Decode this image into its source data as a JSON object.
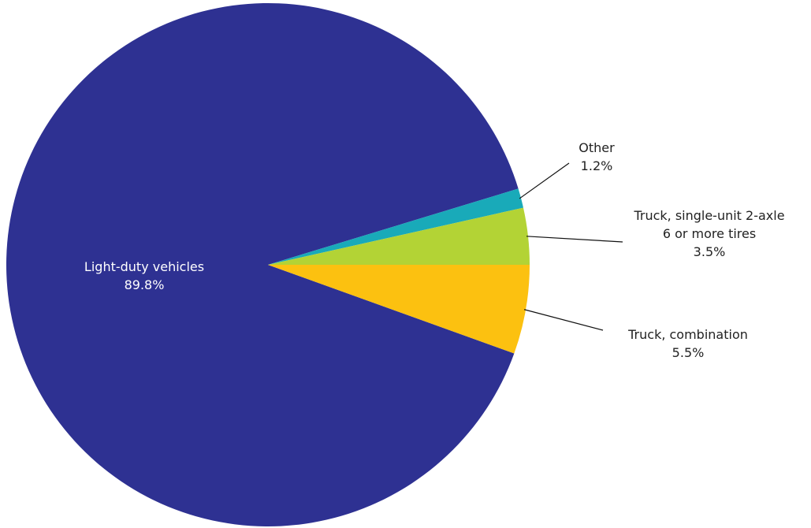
{
  "chart_data": {
    "type": "pie",
    "title": "",
    "slices": [
      {
        "label": [
          "Light-duty vehicles",
          "89.8%"
        ],
        "value": 89.8,
        "color": "#2e3192"
      },
      {
        "label": [
          "Other",
          "1.2%"
        ],
        "value": 1.2,
        "color": "#19aab9"
      },
      {
        "label": [
          "Truck, single-unit 2-axle",
          "6 or more tires",
          "3.5%"
        ],
        "value": 3.5,
        "color": "#b3d335"
      },
      {
        "label": [
          "Truck, combination",
          "5.5%"
        ],
        "value": 5.5,
        "color": "#fcc110"
      }
    ]
  }
}
